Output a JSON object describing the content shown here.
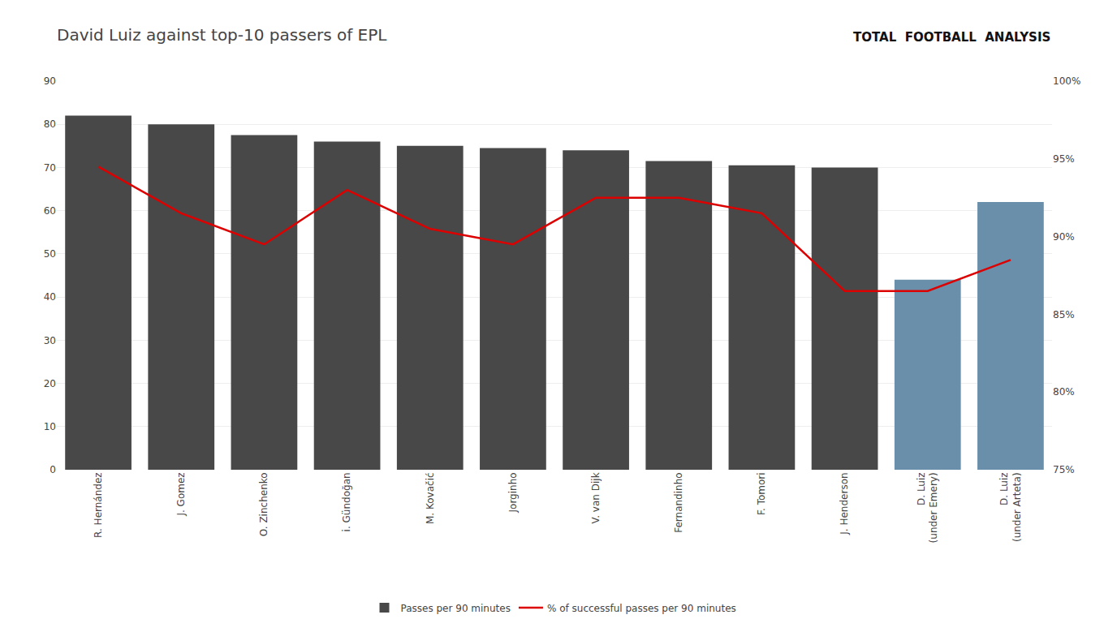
{
  "chart_data": {
    "type": "bar",
    "title": "David Luiz against top-10 passers of EPL",
    "annotations": [
      "TOTAL  FOOTBALL  ANALYSIS"
    ],
    "categories": [
      "R. Hernández",
      "J. Gomez",
      "O. Zinchenko",
      "i. Gündoğan",
      "M. Kovačić",
      "Jorginho",
      "V. van Dijk",
      "Fernandinho",
      "F. Tomori",
      "J. Henderson",
      "D. Luiz\n(under Emery)",
      "D. Luiz\n(under Arteta)"
    ],
    "series": [
      {
        "name": "Passes per 90 minutes",
        "type": "bar",
        "color": "#484848",
        "colors": [
          "#484848",
          "#484848",
          "#484848",
          "#484848",
          "#484848",
          "#484848",
          "#484848",
          "#484848",
          "#484848",
          "#484848",
          "#6a8fab",
          "#6a8fab"
        ],
        "values": [
          82,
          80,
          77.5,
          76,
          75,
          74.5,
          74,
          71.5,
          70.5,
          70,
          44,
          62
        ]
      },
      {
        "name": "% of successful passes per 90 minutes",
        "type": "line",
        "color": "#dd0000",
        "axis": "y2",
        "values": [
          94.5,
          91.5,
          89.5,
          93.0,
          90.5,
          89.5,
          92.5,
          92.5,
          91.5,
          86.5,
          86.5,
          88.5
        ]
      }
    ],
    "ylim": [
      0,
      90
    ],
    "yticks": [
      0,
      10,
      20,
      30,
      40,
      50,
      60,
      70,
      80,
      90
    ],
    "y2lim": [
      75,
      100
    ],
    "y2ticks": [
      {
        "value": 75,
        "label": "75%"
      },
      {
        "value": 80,
        "label": "80%"
      },
      {
        "value": 85,
        "label": "85%"
      },
      {
        "value": 90,
        "label": "90%"
      },
      {
        "value": 95,
        "label": "95%"
      },
      {
        "value": 100,
        "label": "100%"
      }
    ],
    "grid": true,
    "legend": "bottom"
  }
}
